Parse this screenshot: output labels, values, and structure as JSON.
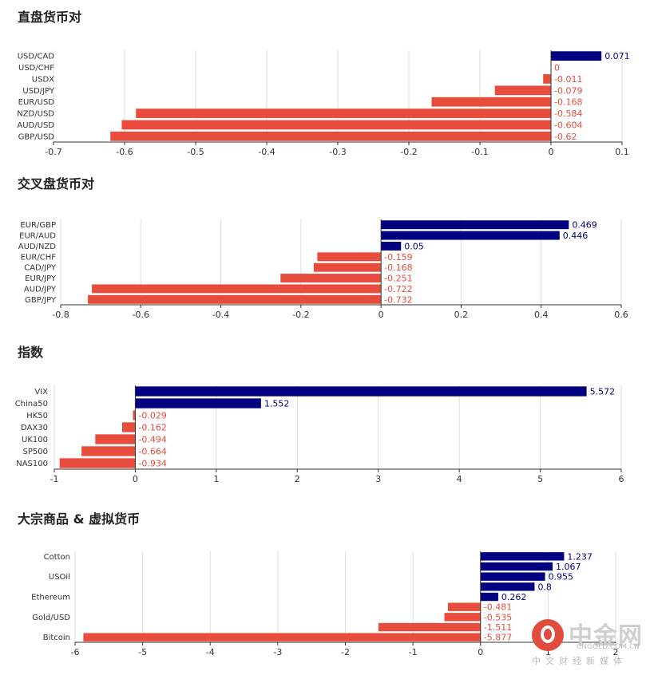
{
  "sections": [
    {
      "title": "直盘货币对"
    },
    {
      "title": "交叉盘货币对"
    },
    {
      "title": "指数"
    },
    {
      "title": "大宗商品 & 虚拟货币"
    }
  ],
  "watermark": {
    "brand": "中金网",
    "url": "CNGOLD.COM.CN",
    "tagline": "中文财经新媒体"
  },
  "colors": {
    "positive": "#000080",
    "negative": "#e74c3c",
    "grid": "#dddddd",
    "axis": "#333333"
  },
  "chart_data": [
    {
      "type": "bar",
      "orientation": "horizontal",
      "title": "直盘货币对",
      "categories": [
        "USD/CAD",
        "USD/CHF",
        "USDX",
        "USD/JPY",
        "EUR/USD",
        "NZD/USD",
        "AUD/USD",
        "GBP/USD"
      ],
      "values": [
        0.071,
        0,
        -0.011,
        -0.079,
        -0.168,
        -0.584,
        -0.604,
        -0.62
      ],
      "value_labels": [
        "0.071",
        "0",
        "-0.011",
        "-0.079",
        "-0.168",
        "-0.584",
        "-0.604",
        "-0.62"
      ],
      "xlim": [
        -0.7,
        0.1
      ],
      "ticks": [
        -0.7,
        -0.6,
        -0.5,
        -0.4,
        -0.3,
        -0.2,
        -0.1,
        0,
        0.1
      ],
      "tick_labels": [
        "-0.7",
        "-0.6",
        "-0.5",
        "-0.4",
        "-0.3",
        "-0.2",
        "-0.1",
        "0",
        "0.1"
      ],
      "grid": true
    },
    {
      "type": "bar",
      "orientation": "horizontal",
      "title": "交叉盘货币对",
      "categories": [
        "EUR/GBP",
        "EUR/AUD",
        "AUD/NZD",
        "EUR/CHF",
        "CAD/JPY",
        "EUR/JPY",
        "AUD/JPY",
        "GBP/JPY"
      ],
      "values": [
        0.469,
        0.446,
        0.05,
        -0.159,
        -0.168,
        -0.251,
        -0.722,
        -0.732
      ],
      "value_labels": [
        "0.469",
        "0.446",
        "0.05",
        "-0.159",
        "-0.168",
        "-0.251",
        "-0.722",
        "-0.732"
      ],
      "xlim": [
        -0.8,
        0.6
      ],
      "ticks": [
        -0.8,
        -0.6,
        -0.4,
        -0.2,
        0,
        0.2,
        0.4,
        0.6
      ],
      "tick_labels": [
        "-0.8",
        "-0.6",
        "-0.4",
        "-0.2",
        "0",
        "0.2",
        "0.4",
        "0.6"
      ],
      "grid": true
    },
    {
      "type": "bar",
      "orientation": "horizontal",
      "title": "指数",
      "categories": [
        "VIX",
        "China50",
        "HK50",
        "DAX30",
        "UK100",
        "SP500",
        "NAS100"
      ],
      "values": [
        5.572,
        1.552,
        -0.029,
        -0.162,
        -0.494,
        -0.664,
        -0.934
      ],
      "value_labels": [
        "5.572",
        "1.552",
        "-0.029",
        "-0.162",
        "-0.494",
        "-0.664",
        "-0.934"
      ],
      "xlim": [
        -1,
        6
      ],
      "ticks": [
        -1,
        0,
        1,
        2,
        3,
        4,
        5,
        6
      ],
      "tick_labels": [
        "-1",
        "0",
        "1",
        "2",
        "3",
        "4",
        "5",
        "6"
      ],
      "grid": true
    },
    {
      "type": "bar",
      "orientation": "horizontal",
      "title": "大宗商品 & 虚拟货币",
      "categories": [
        "Cotton",
        "",
        "USOil",
        "",
        "Ethereum",
        "",
        "Gold/USD",
        "",
        "Bitcoin"
      ],
      "values": [
        1.237,
        1.067,
        0.955,
        0.8,
        0.262,
        -0.481,
        -0.535,
        -1.511,
        -5.877
      ],
      "value_labels": [
        "1.237",
        "1.067",
        "0.955",
        "0.8",
        "0.262",
        "-0.481",
        "-0.535",
        "-1.511",
        "-5.877"
      ],
      "xlim": [
        -6,
        2
      ],
      "ticks": [
        -6,
        -5,
        -4,
        -3,
        -2,
        -1,
        0,
        1,
        2
      ],
      "tick_labels": [
        "-6",
        "-5",
        "-4",
        "-3",
        "-2",
        "-1",
        "0",
        "1",
        "2"
      ],
      "grid": true
    }
  ]
}
